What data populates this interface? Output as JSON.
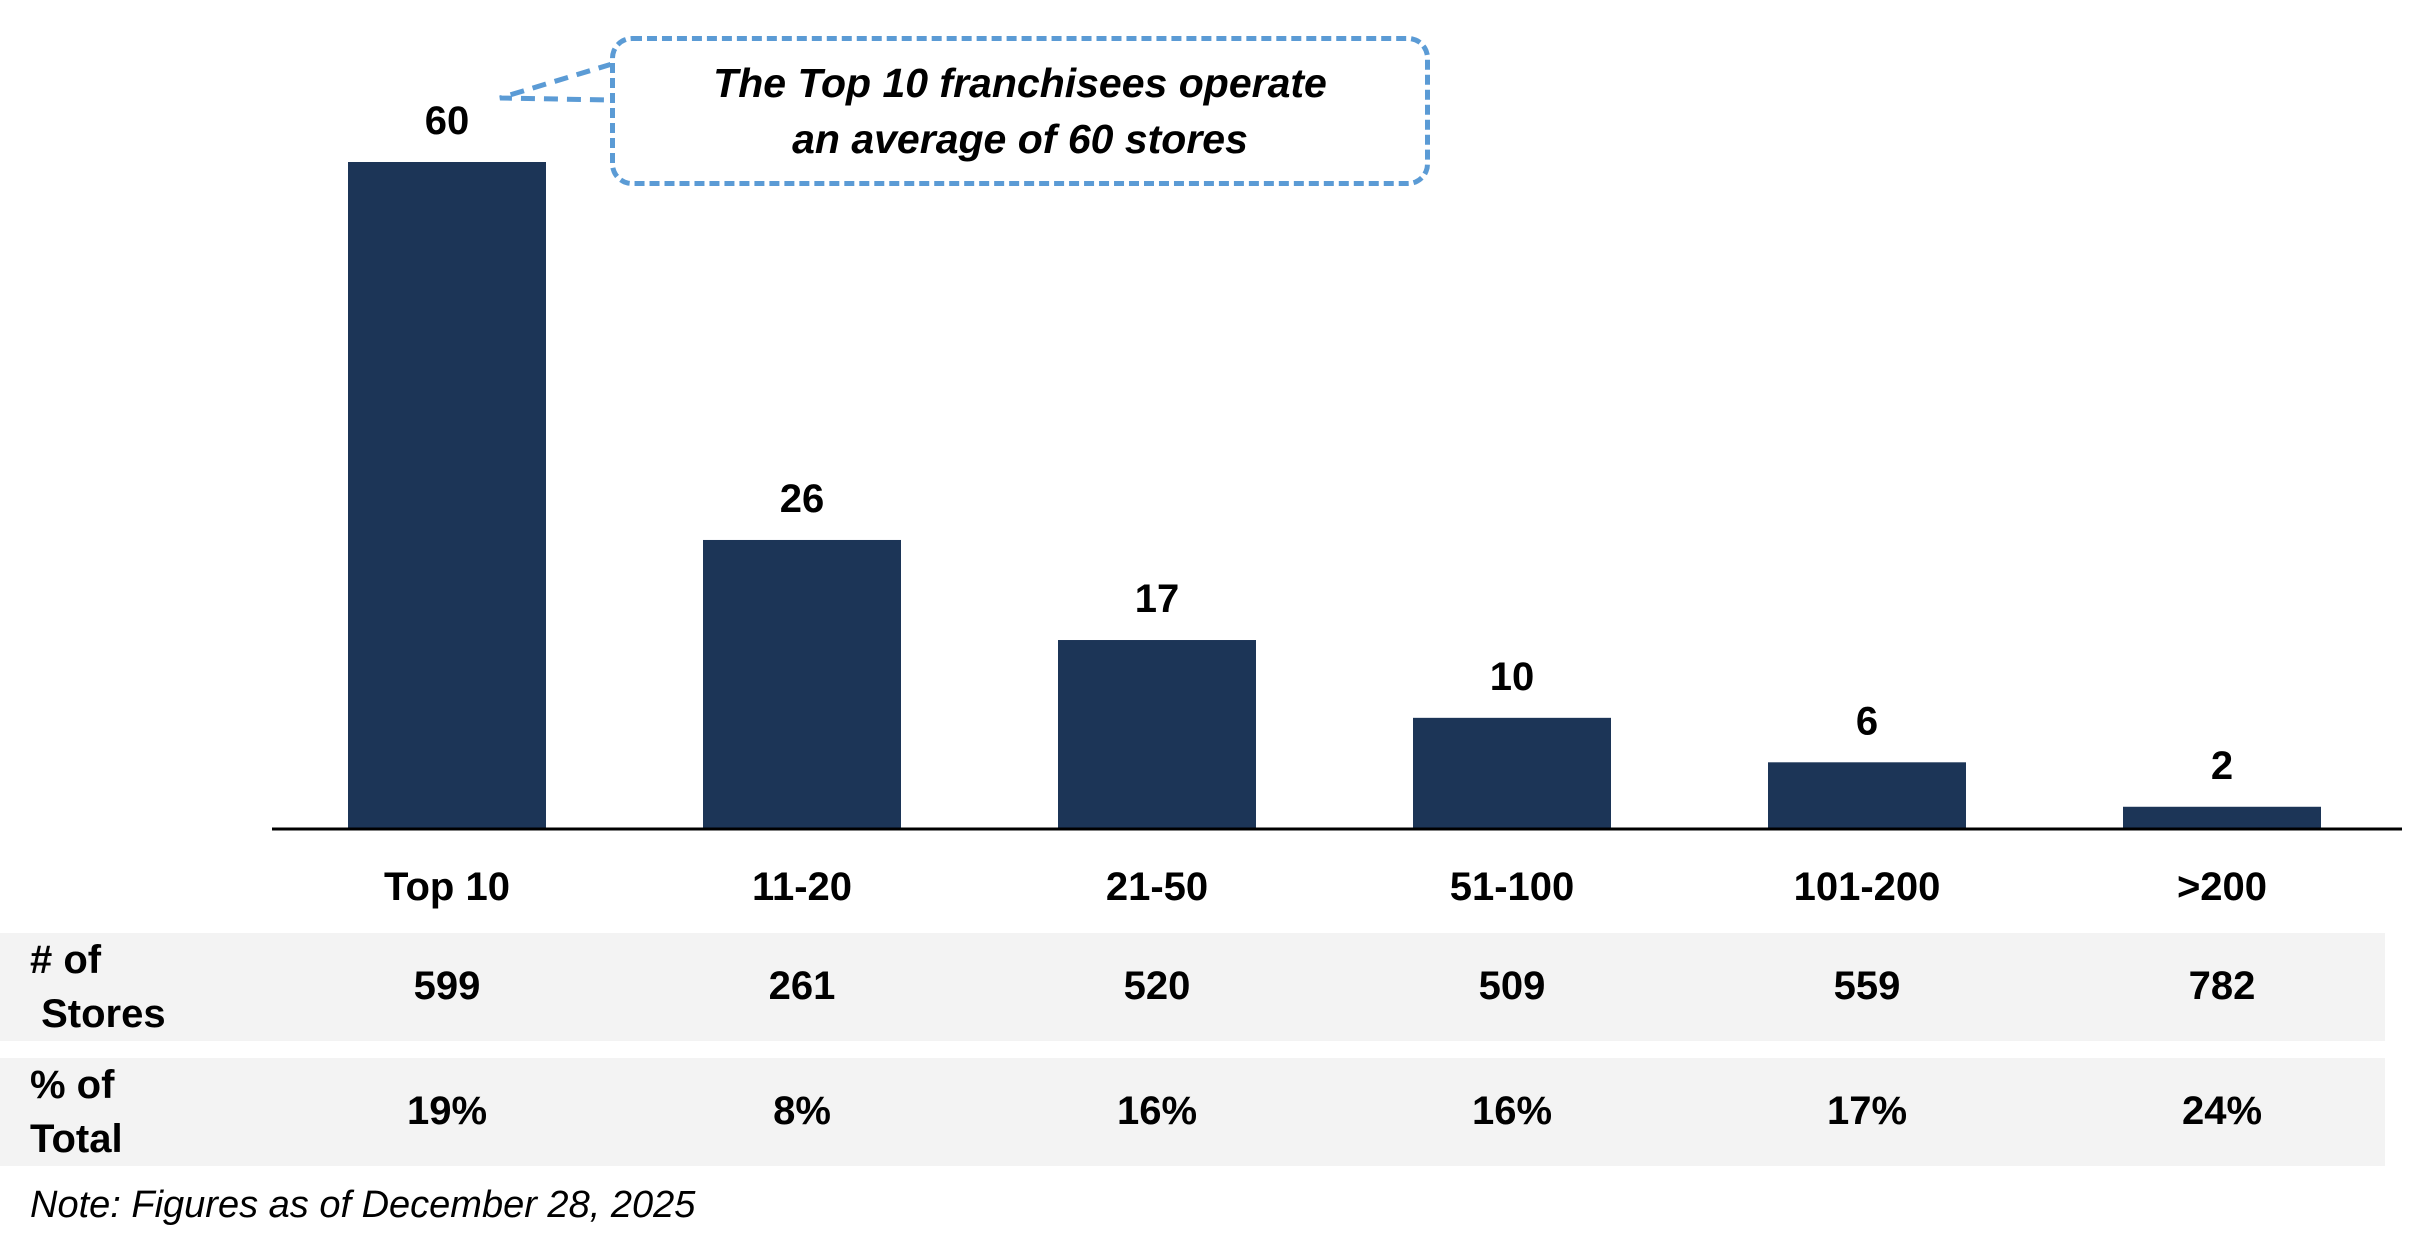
{
  "chart_data": {
    "type": "bar",
    "categories": [
      "Top 10",
      "11-20",
      "21-50",
      "51-100",
      "101-200",
      ">200"
    ],
    "values": [
      60,
      26,
      17,
      10,
      6,
      2
    ],
    "value_labels": [
      "60",
      "26",
      "17",
      "10",
      "6",
      "2"
    ],
    "ylim": [
      0,
      60
    ],
    "bar_color": "#1c3557",
    "grid": false,
    "legend": "none"
  },
  "callout": {
    "line1": "The Top 10 franchisees operate",
    "line2": "an average of 60 stores",
    "border_color": "#5b9bd5"
  },
  "table": {
    "stores_row": {
      "header_line1": "# of",
      "header_line2": " Stores",
      "values": [
        "599",
        "261",
        "520",
        "509",
        "559",
        "782"
      ]
    },
    "percent_row": {
      "header_line1": "% of",
      "header_line2": "Total",
      "values": [
        "19%",
        "8%",
        "16%",
        "16%",
        "17%",
        "24%"
      ]
    },
    "row_background": "#f3f3f3"
  },
  "note": "Note: Figures as of December 28, 2025"
}
